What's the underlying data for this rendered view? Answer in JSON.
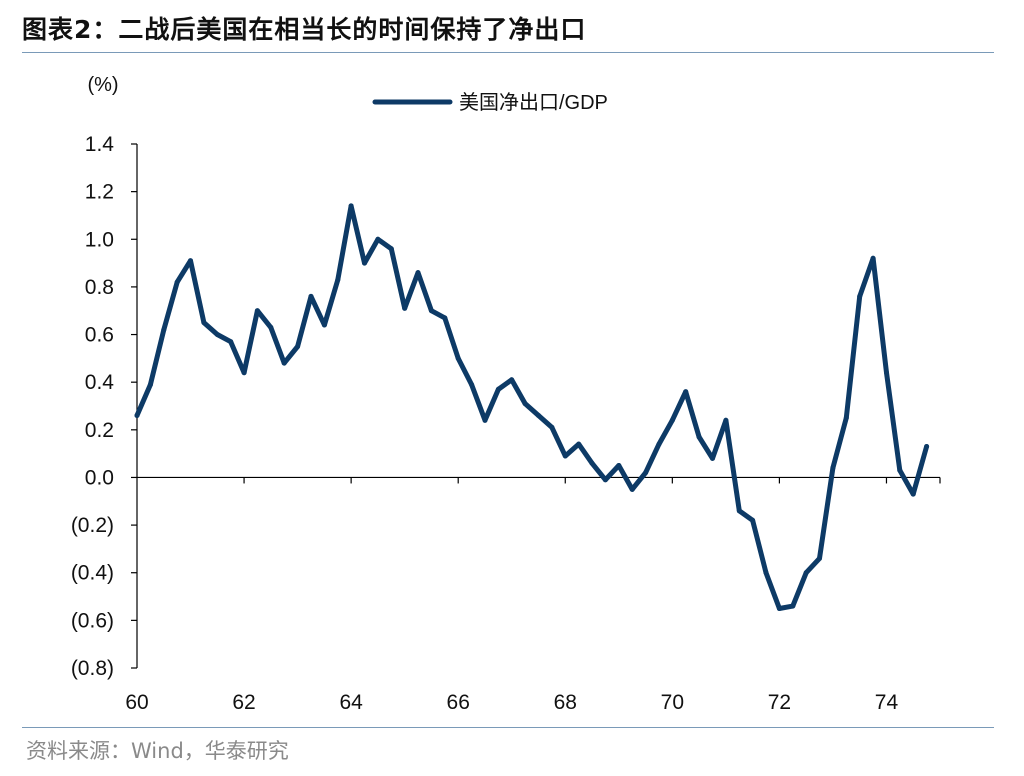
{
  "header": {
    "title": "图表2：二战后美国在相当长的时间保持了净出口"
  },
  "footer": {
    "source": "资料来源：Wind，华泰研究"
  },
  "chart_data": {
    "type": "line",
    "title": "",
    "xlabel": "",
    "ylabel": "(%)",
    "xlim": [
      60,
      75
    ],
    "ylim": [
      -0.8,
      1.4
    ],
    "x_ticks": [
      60,
      62,
      64,
      66,
      68,
      70,
      72,
      74
    ],
    "x_tick_labels": [
      "60",
      "62",
      "64",
      "66",
      "68",
      "70",
      "72",
      "74"
    ],
    "y_ticks": [
      1.4,
      1.2,
      1.0,
      0.8,
      0.6,
      0.4,
      0.2,
      0.0,
      -0.2,
      -0.4,
      -0.6,
      -0.8
    ],
    "y_tick_labels": [
      "1.4",
      "1.2",
      "1.0",
      "0.8",
      "0.6",
      "0.4",
      "0.2",
      "0.0",
      "(0.2)",
      "(0.4)",
      "(0.6)",
      "(0.8)"
    ],
    "legend_position": "top-center",
    "colors": {
      "series": "#0d3a66",
      "axis": "#000000"
    },
    "series": [
      {
        "name": "美国净出口/GDP",
        "x": [
          60.0,
          60.25,
          60.5,
          60.75,
          61.0,
          61.25,
          61.5,
          61.75,
          62.0,
          62.25,
          62.5,
          62.75,
          63.0,
          63.25,
          63.5,
          63.75,
          64.0,
          64.25,
          64.5,
          64.75,
          65.0,
          65.25,
          65.5,
          65.75,
          66.0,
          66.25,
          66.5,
          66.75,
          67.0,
          67.25,
          67.5,
          67.75,
          68.0,
          68.25,
          68.5,
          68.75,
          69.0,
          69.25,
          69.5,
          69.75,
          70.0,
          70.25,
          70.5,
          70.75,
          71.0,
          71.25,
          71.5,
          71.75,
          72.0,
          72.25,
          72.5,
          72.75,
          73.0,
          73.25,
          73.5,
          73.75,
          74.0,
          74.25,
          74.5,
          74.75
        ],
        "values": [
          0.26,
          0.39,
          0.62,
          0.82,
          0.91,
          0.65,
          0.6,
          0.57,
          0.44,
          0.7,
          0.63,
          0.48,
          0.55,
          0.76,
          0.64,
          0.83,
          1.14,
          0.9,
          1.0,
          0.96,
          0.71,
          0.86,
          0.7,
          0.67,
          0.5,
          0.39,
          0.24,
          0.37,
          0.41,
          0.31,
          0.26,
          0.21,
          0.09,
          0.14,
          0.06,
          -0.01,
          0.05,
          -0.05,
          0.02,
          0.14,
          0.24,
          0.36,
          0.17,
          0.08,
          0.24,
          -0.14,
          -0.18,
          -0.4,
          -0.55,
          -0.54,
          -0.4,
          -0.34,
          0.04,
          0.25,
          0.76,
          0.92,
          0.44,
          0.03,
          -0.07,
          0.13
        ]
      }
    ]
  }
}
